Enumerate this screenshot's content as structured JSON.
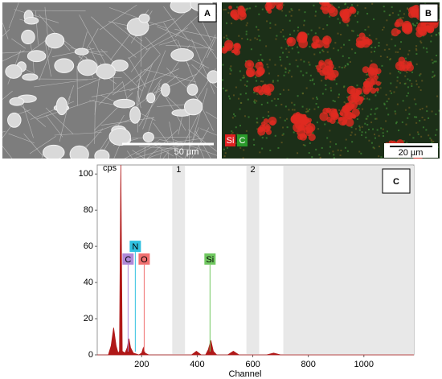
{
  "panels": [
    {
      "label": "A",
      "scale_bar": "50 µm"
    },
    {
      "label": "B",
      "scale_bar": "20 µm",
      "legend": [
        {
          "name": "Si",
          "color": "#e02020"
        },
        {
          "name": "C",
          "color": "#2a9a2a"
        }
      ]
    }
  ],
  "chart_data": {
    "type": "area",
    "panel_label": "C",
    "y_unit": "cps",
    "x_label": "Channel",
    "color": "#b01818",
    "x": [
      40,
      80,
      90,
      99,
      108,
      115,
      120,
      125,
      130,
      140,
      148,
      154,
      160,
      170,
      190,
      200,
      206,
      212,
      225,
      300,
      380,
      397,
      414,
      430,
      440,
      449,
      458,
      470,
      510,
      530,
      550,
      650,
      675,
      700,
      900,
      1180
    ],
    "values": [
      0,
      0,
      5,
      15,
      5,
      1,
      2,
      105,
      2,
      1,
      4,
      9,
      4,
      1,
      0,
      1,
      4,
      1,
      0,
      0,
      0,
      2,
      0,
      0,
      3,
      8,
      2,
      0,
      0,
      2,
      0,
      0,
      1,
      0,
      0,
      0
    ],
    "xlim": [
      40,
      1180
    ],
    "ylim": [
      0,
      105
    ],
    "xticks": [
      200,
      400,
      600,
      800,
      1000
    ],
    "yticks": [
      0,
      20,
      40,
      60,
      80,
      100
    ],
    "regions": [
      {
        "label": "1",
        "range": [
          310,
          356
        ]
      },
      {
        "label": "2",
        "range": [
          577,
          623
        ]
      },
      {
        "range": [
          710,
          1180
        ]
      }
    ],
    "annotations": [
      {
        "text": "C",
        "x": 151,
        "y": 53,
        "color": "#b088d8"
      },
      {
        "text": "N",
        "x": 177,
        "y": 60,
        "color": "#30c0e0"
      },
      {
        "text": "O",
        "x": 209,
        "y": 53,
        "color": "#f07070"
      },
      {
        "text": "Si",
        "x": 446,
        "y": 53,
        "color": "#70c860"
      }
    ]
  }
}
